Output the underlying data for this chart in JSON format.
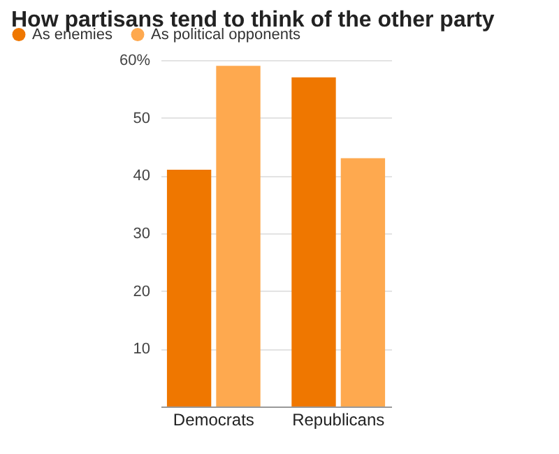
{
  "chart_data": {
    "type": "bar",
    "title": "How partisans tend to think of the other party",
    "categories": [
      "Democrats",
      "Republicans"
    ],
    "series": [
      {
        "name": "As enemies",
        "color": "#ef7700",
        "values": [
          41,
          57
        ]
      },
      {
        "name": "As political opponents",
        "color": "#fea94f",
        "values": [
          59,
          43
        ]
      }
    ],
    "ylim": [
      0,
      60
    ],
    "yticks": [
      {
        "value": 0,
        "label": null
      },
      10,
      20,
      30,
      40,
      50,
      {
        "value": 60,
        "label": "60%"
      }
    ],
    "grid": "y",
    "legend": "top left"
  }
}
